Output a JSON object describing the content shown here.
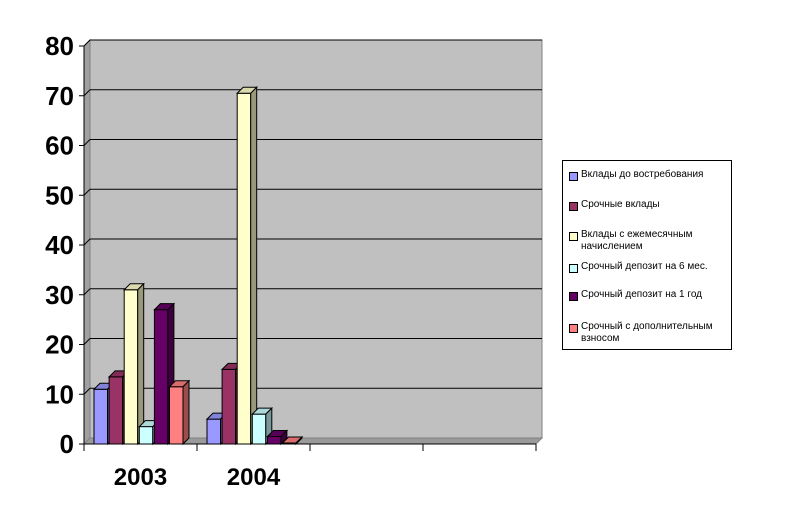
{
  "chart_data": {
    "type": "bar",
    "categories": [
      "2003",
      "2004",
      "",
      ""
    ],
    "ylim": [
      0,
      80
    ],
    "yticks": [
      0,
      10,
      20,
      30,
      40,
      50,
      60,
      70,
      80
    ],
    "grid": true,
    "legend_position": "right",
    "series": [
      {
        "name": "Вклады до востребования",
        "color": "#9999ff",
        "values": [
          11,
          5,
          null,
          null
        ]
      },
      {
        "name": "Срочные вклады",
        "color": "#993366",
        "values": [
          13.5,
          15,
          null,
          null
        ]
      },
      {
        "name": "Вклады с ежемесячным начислением",
        "color": "#ffffcc",
        "values": [
          31,
          70.5,
          null,
          null
        ]
      },
      {
        "name": "Срочный депозит на 6 мес.",
        "color": "#ccffff",
        "values": [
          3.5,
          6,
          null,
          null
        ]
      },
      {
        "name": "Срочный депозит на 1 год",
        "color": "#660066",
        "values": [
          27,
          1.5,
          null,
          null
        ]
      },
      {
        "name": "Срочный с дополнительным взносом",
        "color": "#ff8080",
        "values": [
          11.5,
          0.2,
          null,
          null
        ]
      }
    ]
  }
}
